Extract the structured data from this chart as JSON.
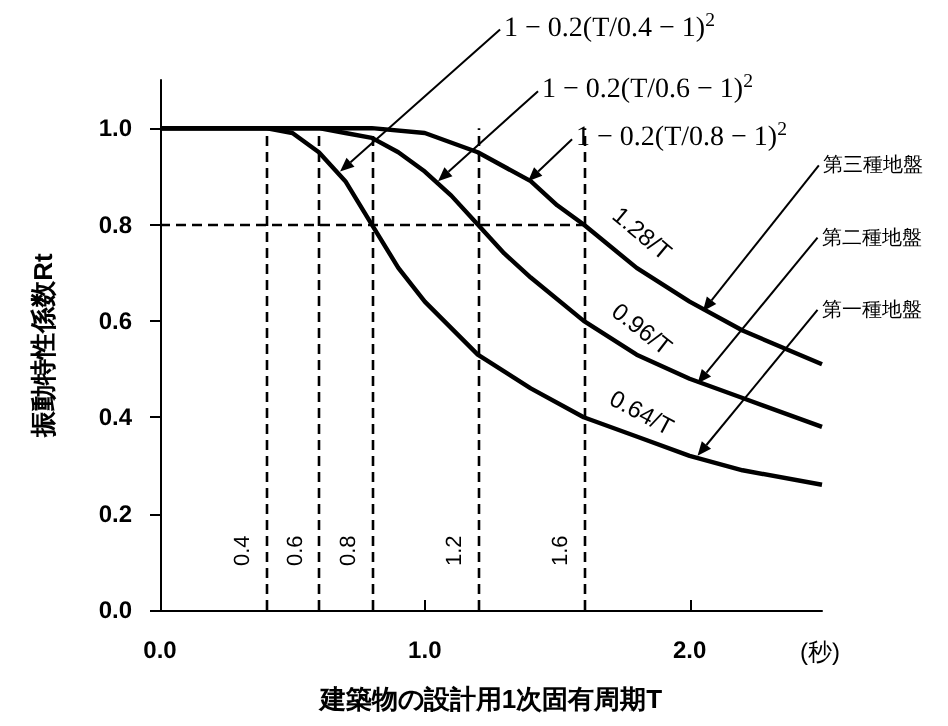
{
  "chart_data": {
    "type": "line",
    "xlabel": "建築物の設計用1次固有周期T",
    "ylabel": "振動特性係数Rt",
    "series": [
      {
        "color": "#000000",
        "x": [
          0,
          0.4,
          0.5,
          0.6,
          0.7,
          0.8,
          0.9,
          1.0,
          1.2,
          1.4,
          1.6,
          1.8,
          2.0,
          2.2,
          2.5
        ],
        "values": [
          1.0,
          1.0,
          0.99,
          0.95,
          0.89,
          0.8,
          0.71,
          0.64,
          0.53,
          0.46,
          0.4,
          0.36,
          0.32,
          0.29,
          0.26
        ]
      },
      {
        "color": "#000000",
        "x": [
          0,
          0.6,
          0.7,
          0.8,
          0.9,
          1.0,
          1.1,
          1.2,
          1.3,
          1.4,
          1.6,
          1.8,
          2.0,
          2.2,
          2.5
        ],
        "values": [
          1.0,
          1.0,
          0.99,
          0.98,
          0.95,
          0.91,
          0.86,
          0.8,
          0.74,
          0.69,
          0.6,
          0.53,
          0.48,
          0.44,
          0.38
        ]
      },
      {
        "color": "#000000",
        "x": [
          0,
          0.8,
          1.0,
          1.2,
          1.4,
          1.5,
          1.6,
          1.8,
          2.0,
          2.2,
          2.5
        ],
        "values": [
          1.0,
          1.0,
          0.99,
          0.95,
          0.89,
          0.84,
          0.8,
          0.71,
          0.64,
          0.58,
          0.51
        ]
      }
    ],
    "xlim": [
      0,
      2.5
    ],
    "xticks": [
      {
        "value": 0,
        "label": "0.0"
      },
      {
        "value": 1,
        "label": "1.0"
      },
      {
        "value": 2,
        "label": "2.0"
      }
    ],
    "ylim": [
      0,
      1.1
    ],
    "yticks": [
      {
        "value": 0,
        "label": "0.0"
      },
      {
        "value": 0.2,
        "label": "0.2"
      },
      {
        "value": 0.4,
        "label": "0.4"
      },
      {
        "value": 0.6,
        "label": "0.6"
      },
      {
        "value": 0.8,
        "label": "0.8"
      },
      {
        "value": 1.0,
        "label": "1.0"
      }
    ],
    "ref_lines": [
      {
        "axis": "x",
        "value": 0.4,
        "label": "0.4",
        "line_style": "dashed"
      },
      {
        "axis": "x",
        "value": 0.6,
        "label": "0.6",
        "line_style": "dashed"
      },
      {
        "axis": "x",
        "value": 0.8,
        "label": "0.8",
        "line_style": "dashed"
      },
      {
        "axis": "x",
        "value": 1.2,
        "label": "1.2",
        "line_style": "dashed"
      },
      {
        "axis": "x",
        "value": 1.6,
        "label": "1.6",
        "line_style": "dashed"
      },
      {
        "axis": "y",
        "value": 0.8,
        "label": null,
        "line_style": "dashed"
      }
    ],
    "annotations": [
      {
        "text": "1 − 0.2(T/0.4 − 1)$^{2}$",
        "x": 0.68,
        "y": 0.91
      },
      {
        "text": "1 − 0.2(T/0.6 − 1)$^{2}$",
        "x": 1.05,
        "y": 0.89
      },
      {
        "text": "1 − 0.2(T/0.8 − 1)$^{2}$",
        "x": 1.39,
        "y": 0.89
      },
      {
        "text": "1.28/T",
        "x": 1.77,
        "y": 0.72
      },
      {
        "text": "0.96/T",
        "x": 1.8,
        "y": 0.53
      },
      {
        "text": "0.64/T",
        "x": 1.8,
        "y": 0.36
      },
      {
        "text": "第三種地盤",
        "x": 2.05,
        "y": 0.62
      },
      {
        "text": "第二種地盤",
        "x": 2.03,
        "y": 0.47
      },
      {
        "text": "第一種地盤",
        "x": 2.03,
        "y": 0.32
      },
      "(秒)"
    ],
    "grid": false
  }
}
